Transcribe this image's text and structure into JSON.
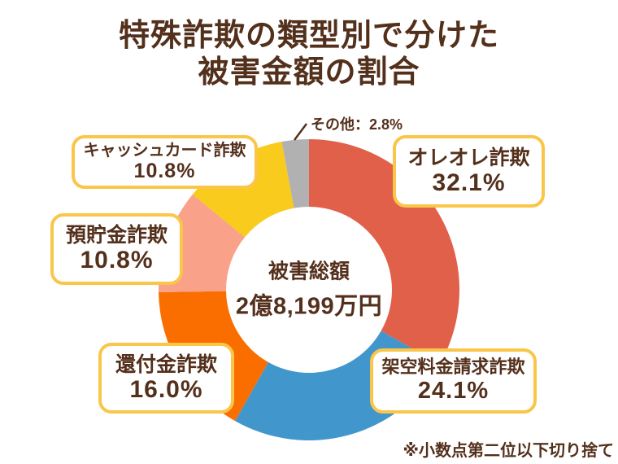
{
  "title": {
    "line1": "特殊詐欺の類型別で分けた",
    "line2": "被害金額の割合"
  },
  "center": {
    "line1": "被害総額",
    "line2": "2億8,199万円"
  },
  "other_callout": {
    "text": "その他：2.8%"
  },
  "footnote": "※小数点第二位以下切り捨て",
  "colors": {
    "text_brown": "#54301C",
    "box_border_yellow": "#F9C64A",
    "background": "#FFFFFF"
  },
  "chart_data": {
    "type": "pie",
    "subtype": "donut",
    "title": "特殊詐欺の類型別で分けた被害金額の割合",
    "center_label": [
      "被害総額",
      "2億8,199万円"
    ],
    "unit": "%",
    "start_angle_deg": 0,
    "direction": "clockwise",
    "legend_position": "callout-boxes",
    "series": [
      {
        "name": "オレオレ詐欺",
        "value": 32.1,
        "display": "32.1%",
        "color": "#E0604A"
      },
      {
        "name": "架空料金請求詐欺",
        "value": 24.1,
        "display": "24.1%",
        "color": "#4197CC"
      },
      {
        "name": "還付金詐欺",
        "value": 16.0,
        "display": "16.0%",
        "color": "#FA6E00"
      },
      {
        "name": "預貯金詐欺",
        "value": 10.8,
        "display": "10.8%",
        "color": "#FAA189"
      },
      {
        "name": "キャッシュカード詐欺",
        "value": 10.8,
        "display": "10.8%",
        "color": "#F8CB1C"
      },
      {
        "name": "その他",
        "value": 2.8,
        "display": "2.8%",
        "color": "#B1B1B1"
      }
    ],
    "annotations": [
      "その他：2.8%",
      "※小数点第二位以下切り捨て"
    ]
  }
}
